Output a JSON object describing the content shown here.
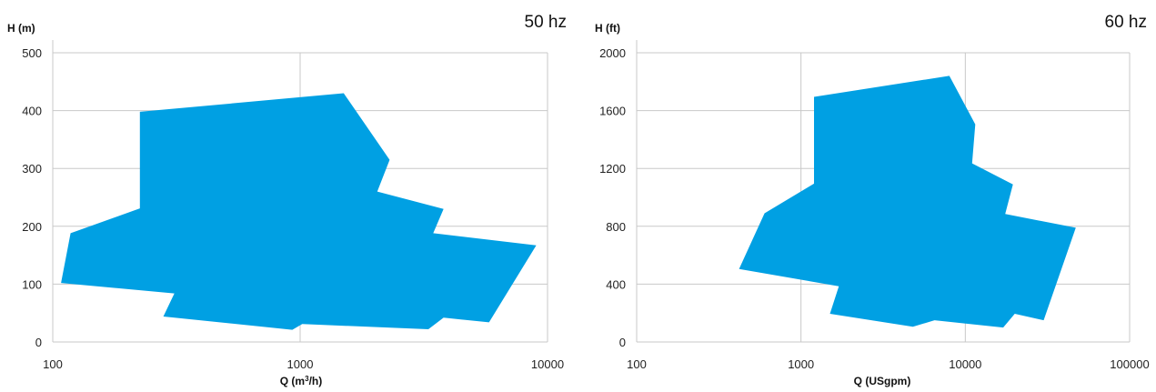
{
  "chart_data": [
    {
      "type": "area",
      "title": "50 hz",
      "xlabel_prefix": "Q (m",
      "xlabel_sup": "3",
      "xlabel_suffix": "/h)",
      "ylabel": "H (m)",
      "x_scale": "log",
      "xlim": [
        100,
        10000
      ],
      "ylim": [
        0,
        500
      ],
      "x_ticks": [
        100,
        1000,
        10000
      ],
      "x_tick_labels": [
        "100",
        "1000",
        "10000"
      ],
      "y_ticks": [
        0,
        100,
        200,
        300,
        400,
        500
      ],
      "y_tick_labels": [
        "0",
        "100",
        "200",
        "300",
        "400",
        "500"
      ],
      "grid": true,
      "fill_color": "#00a0e3",
      "polygon": [
        [
          225,
          398
        ],
        [
          1500,
          430
        ],
        [
          2300,
          315
        ],
        [
          2050,
          260
        ],
        [
          3800,
          230
        ],
        [
          3450,
          188
        ],
        [
          9000,
          167
        ],
        [
          5800,
          34
        ],
        [
          3800,
          42
        ],
        [
          3300,
          22
        ],
        [
          1020,
          31
        ],
        [
          930,
          21
        ],
        [
          280,
          44
        ],
        [
          310,
          84
        ],
        [
          108,
          102
        ],
        [
          118,
          188
        ],
        [
          225,
          231
        ]
      ]
    },
    {
      "type": "area",
      "title": "60 hz",
      "xlabel": "Q (USgpm)",
      "ylabel": "H (ft)",
      "x_scale": "log",
      "xlim": [
        100,
        100000
      ],
      "ylim": [
        0,
        2000
      ],
      "x_ticks": [
        100,
        1000,
        10000,
        100000
      ],
      "x_tick_labels": [
        "100",
        "1000",
        "10000",
        "100000"
      ],
      "y_ticks": [
        0,
        400,
        800,
        1200,
        1600,
        2000
      ],
      "y_tick_labels": [
        "0",
        "400",
        "800",
        "1200",
        "1600",
        "2000"
      ],
      "grid": true,
      "fill_color": "#00a0e3",
      "polygon": [
        [
          1200,
          1695
        ],
        [
          8000,
          1840
        ],
        [
          11500,
          1505
        ],
        [
          11000,
          1235
        ],
        [
          19500,
          1090
        ],
        [
          17500,
          885
        ],
        [
          47000,
          790
        ],
        [
          30000,
          150
        ],
        [
          20000,
          195
        ],
        [
          17000,
          100
        ],
        [
          6500,
          150
        ],
        [
          4800,
          105
        ],
        [
          1500,
          195
        ],
        [
          1700,
          385
        ],
        [
          420,
          505
        ],
        [
          600,
          890
        ],
        [
          1200,
          1095
        ]
      ]
    }
  ]
}
